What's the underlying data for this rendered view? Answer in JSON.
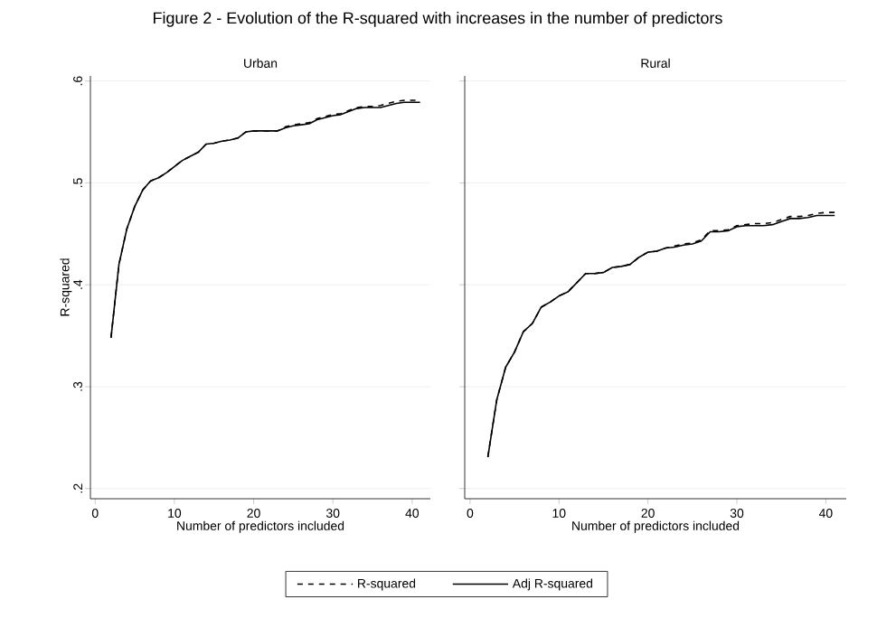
{
  "chart_data": [
    {
      "type": "line",
      "title": "Urban",
      "annotations": [
        "Figure 2 - Evolution of the R-squared with increases in the number of predictors"
      ],
      "xlabel": "Number of predictors included",
      "ylabel": "R-squared",
      "x": [
        2,
        3,
        4,
        5,
        6,
        7,
        8,
        9,
        10,
        11,
        12,
        13,
        14,
        15,
        16,
        17,
        18,
        19,
        20,
        21,
        22,
        23,
        24,
        25,
        26,
        27,
        28,
        29,
        30,
        31,
        32,
        33,
        34,
        35,
        36,
        37,
        38,
        39,
        40,
        41
      ],
      "xlim": [
        -0.6,
        42.3
      ],
      "ylim": [
        0.19,
        0.605
      ],
      "xticks": [
        0,
        10,
        20,
        30,
        40
      ],
      "yticks": [
        {
          "value": 0.2,
          "label": ".2"
        },
        {
          "value": 0.3,
          "label": ".3"
        },
        {
          "value": 0.4,
          "label": ".4"
        },
        {
          "value": 0.5,
          "label": ".5"
        },
        {
          "value": 0.6,
          "label": ".6"
        }
      ],
      "grid": "y",
      "legend": "bottom",
      "series": [
        {
          "name": "R-squared",
          "color": "#000000",
          "line_style": "dashed",
          "values": [
            0.348,
            0.42,
            0.455,
            0.477,
            0.493,
            0.502,
            0.505,
            0.51,
            0.516,
            0.522,
            0.526,
            0.53,
            0.538,
            0.539,
            0.541,
            0.542,
            0.544,
            0.55,
            0.551,
            0.551,
            0.551,
            0.551,
            0.555,
            0.557,
            0.558,
            0.559,
            0.563,
            0.565,
            0.567,
            0.568,
            0.571,
            0.574,
            0.575,
            0.575,
            0.576,
            0.578,
            0.58,
            0.581,
            0.581,
            0.581
          ]
        },
        {
          "name": "Adj R-squared",
          "color": "#000000",
          "line_style": "solid",
          "values": [
            0.348,
            0.42,
            0.455,
            0.477,
            0.493,
            0.502,
            0.505,
            0.51,
            0.516,
            0.522,
            0.526,
            0.53,
            0.538,
            0.539,
            0.541,
            0.542,
            0.544,
            0.55,
            0.551,
            0.551,
            0.551,
            0.551,
            0.554,
            0.556,
            0.557,
            0.558,
            0.562,
            0.564,
            0.566,
            0.567,
            0.57,
            0.573,
            0.574,
            0.574,
            0.574,
            0.576,
            0.578,
            0.579,
            0.579,
            0.579
          ]
        }
      ]
    },
    {
      "type": "line",
      "title": "Rural",
      "xlabel": "Number of predictors included",
      "x": [
        2,
        3,
        4,
        5,
        6,
        7,
        8,
        9,
        10,
        11,
        12,
        13,
        14,
        15,
        16,
        17,
        18,
        19,
        20,
        21,
        22,
        23,
        24,
        25,
        26,
        27,
        28,
        29,
        30,
        31,
        32,
        33,
        34,
        35,
        36,
        37,
        38,
        39,
        40,
        41
      ],
      "xlim": [
        -0.6,
        42.3
      ],
      "ylim": [
        0.19,
        0.605
      ],
      "xticks": [
        0,
        10,
        20,
        30,
        40
      ],
      "yticks": [
        {
          "value": 0.2,
          "label": null
        },
        {
          "value": 0.3,
          "label": null
        },
        {
          "value": 0.4,
          "label": null
        },
        {
          "value": 0.5,
          "label": null
        },
        {
          "value": 0.6,
          "label": null
        }
      ],
      "grid": "y",
      "tick_labels": "x",
      "series": [
        {
          "color": "#000000",
          "line_style": "dashed",
          "values": [
            0.231,
            0.287,
            0.319,
            0.334,
            0.354,
            0.362,
            0.378,
            0.383,
            0.389,
            0.393,
            0.402,
            0.411,
            0.411,
            0.412,
            0.417,
            0.418,
            0.42,
            0.427,
            0.432,
            0.433,
            0.436,
            0.438,
            0.44,
            0.441,
            0.444,
            0.453,
            0.453,
            0.454,
            0.458,
            0.459,
            0.46,
            0.46,
            0.461,
            0.464,
            0.467,
            0.467,
            0.468,
            0.47,
            0.471,
            0.471
          ]
        },
        {
          "color": "#000000",
          "line_style": "solid",
          "values": [
            0.231,
            0.287,
            0.319,
            0.334,
            0.354,
            0.362,
            0.378,
            0.383,
            0.389,
            0.393,
            0.402,
            0.411,
            0.411,
            0.412,
            0.417,
            0.418,
            0.42,
            0.427,
            0.432,
            0.433,
            0.436,
            0.437,
            0.439,
            0.44,
            0.443,
            0.452,
            0.452,
            0.453,
            0.457,
            0.458,
            0.458,
            0.458,
            0.459,
            0.462,
            0.465,
            0.465,
            0.466,
            0.468,
            0.468,
            0.468
          ]
        }
      ]
    }
  ]
}
